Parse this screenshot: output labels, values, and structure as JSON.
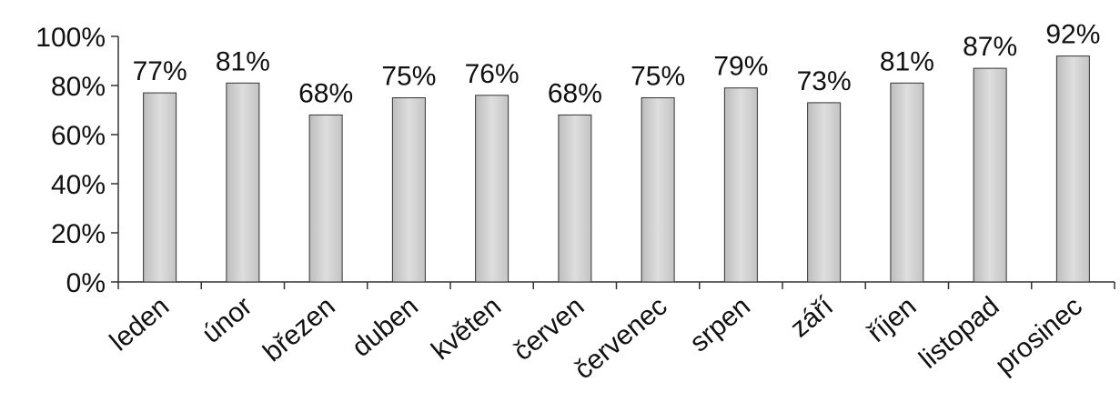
{
  "chart_data": {
    "type": "bar",
    "categories": [
      "leden",
      "únor",
      "březen",
      "duben",
      "květen",
      "červen",
      "červenec",
      "srpen",
      "září",
      "říjen",
      "listopad",
      "prosinec"
    ],
    "values": [
      77,
      81,
      68,
      75,
      76,
      68,
      75,
      79,
      73,
      81,
      87,
      92
    ],
    "value_labels": [
      "77%",
      "81%",
      "68%",
      "75%",
      "76%",
      "68%",
      "75%",
      "79%",
      "73%",
      "81%",
      "87%",
      "92%"
    ],
    "y_ticks": [
      0,
      20,
      40,
      60,
      80,
      100
    ],
    "y_tick_labels": [
      "0%",
      "20%",
      "40%",
      "60%",
      "80%",
      "100%"
    ],
    "ylim": [
      0,
      100
    ],
    "grid": false,
    "colors": {
      "bar_fill": "#cfcfcf",
      "bar_edge": "#333333",
      "axis": "#333333"
    }
  }
}
